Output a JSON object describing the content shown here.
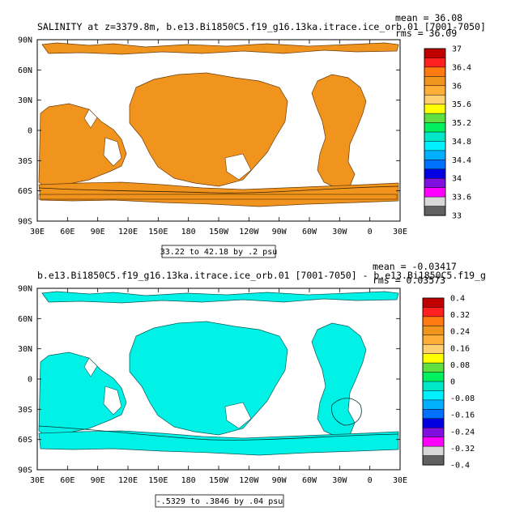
{
  "axes": {
    "lat_labels": [
      "90N",
      "60N",
      "30N",
      "0",
      "30S",
      "60S",
      "90S"
    ],
    "lon_labels": [
      "30E",
      "60E",
      "90E",
      "120E",
      "150E",
      "180",
      "150W",
      "120W",
      "90W",
      "60W",
      "30W",
      "0",
      "30E"
    ]
  },
  "panels": [
    {
      "title": "SALINITY at z=3379.8m, b.e13.Bi1850C5.f19_g16.13ka.itrace.ice_orb.01 [7001-7050]",
      "mean_text": "mean = 36.08",
      "rms_text": "rms = 36.09",
      "range_text": "33.22 to 42.18 by .2 psu",
      "fill_color": "#f0941e",
      "colorbar": {
        "colors": [
          "#c00000",
          "#ff2020",
          "#ff7a10",
          "#f0941e",
          "#ffae38",
          "#ffd070",
          "#ffff00",
          "#60e040",
          "#00f060",
          "#00e8c8",
          "#00f0ff",
          "#00b0ff",
          "#0070ff",
          "#0000e0",
          "#8010e0",
          "#ff00ff",
          "#d8d8d8",
          "#606060"
        ],
        "labels": [
          "37",
          "36.4",
          "36",
          "35.6",
          "35.2",
          "34.8",
          "34.4",
          "34",
          "33.6",
          "33"
        ]
      }
    },
    {
      "title": "b.e13.Bi1850C5.f19_g16.13ka.itrace.ice_orb.01 [7001-7050] - b.e13.Bi1850C5.f19_g",
      "mean_text": "mean = -0.03417",
      "rms_text": "rms = 0.03573",
      "range_text": "-.5329 to .3846 by .04 psu",
      "fill_color": "#00f2e6",
      "colorbar": {
        "colors": [
          "#c00000",
          "#ff2020",
          "#ff7a10",
          "#f0941e",
          "#ffae38",
          "#ffd070",
          "#ffff00",
          "#60e040",
          "#00f060",
          "#00e8c8",
          "#00f0ff",
          "#00b0ff",
          "#0070ff",
          "#0000e0",
          "#8010e0",
          "#ff00ff",
          "#d8d8d8",
          "#606060"
        ],
        "labels": [
          "0.4",
          "0.32",
          "0.24",
          "0.16",
          "0.08",
          "0",
          "-0.08",
          "-0.16",
          "-0.24",
          "-0.32",
          "-0.4"
        ]
      }
    }
  ]
}
